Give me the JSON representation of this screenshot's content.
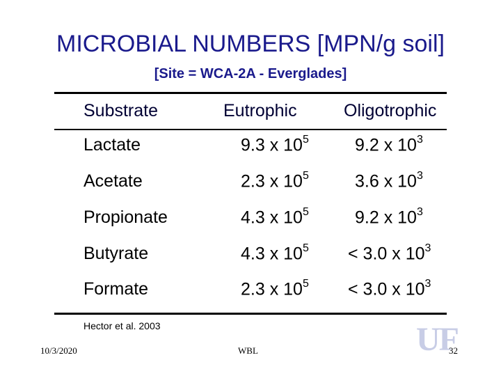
{
  "title": "MICROBIAL NUMBERS [MPN/g soil]",
  "subtitle": "[Site = WCA-2A - Everglades]",
  "table": {
    "headers": [
      "Substrate",
      "Eutrophic",
      "Oligotrophic"
    ],
    "rows": [
      {
        "substrate": "Lactate",
        "eutrophic_base": "9.3 x 10",
        "eutrophic_exp": "5",
        "oligotrophic_base": "9.2 x 10",
        "oligotrophic_exp": "3"
      },
      {
        "substrate": "Acetate",
        "eutrophic_base": "2.3 x 10",
        "eutrophic_exp": "5",
        "oligotrophic_base": "3.6 x 10",
        "oligotrophic_exp": "3"
      },
      {
        "substrate": "Propionate",
        "eutrophic_base": "4.3 x 10",
        "eutrophic_exp": "5",
        "oligotrophic_base": "9.2 x 10",
        "oligotrophic_exp": "3"
      },
      {
        "substrate": "Butyrate",
        "eutrophic_base": "4.3 x 10",
        "eutrophic_exp": "5",
        "oligotrophic_base": "< 3.0 x 10",
        "oligotrophic_exp": "3"
      },
      {
        "substrate": "Formate",
        "eutrophic_base": "2.3 x 10",
        "eutrophic_exp": "5",
        "oligotrophic_base": "< 3.0 x 10",
        "oligotrophic_exp": "3"
      }
    ]
  },
  "citation": "Hector et al. 2003",
  "footer": {
    "date": "10/3/2020",
    "center": "WBL",
    "page": "32"
  },
  "logo": {
    "text": "UF"
  }
}
